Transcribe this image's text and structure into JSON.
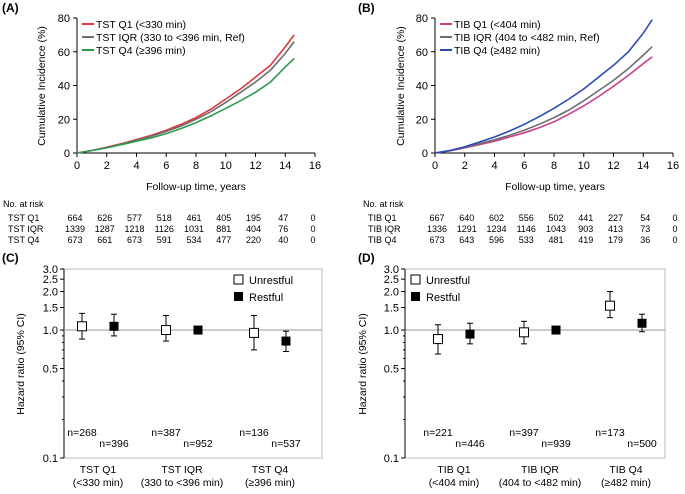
{
  "chart_data": [
    {
      "panel": "(A)",
      "type": "line",
      "xlabel": "Follow-up time, years",
      "ylabel": "Cumulative Incidence (%)",
      "xlim": [
        0,
        16
      ],
      "ylim": [
        0,
        80
      ],
      "xticks": [
        "0",
        "2",
        "4",
        "6",
        "8",
        "10",
        "12",
        "14",
        "16"
      ],
      "yticks": [
        "0",
        "20",
        "40",
        "60",
        "80"
      ],
      "series": [
        {
          "name": "TST Q1 (<330 min)",
          "color": "#e0393e",
          "x": [
            0,
            1,
            2,
            3,
            4,
            5,
            6,
            7,
            8,
            9,
            10,
            11,
            12,
            13,
            14,
            14.6
          ],
          "y": [
            0,
            1.5,
            3.5,
            5.5,
            8,
            10.5,
            13.5,
            17,
            21,
            26,
            32,
            38,
            45,
            52,
            63,
            70
          ]
        },
        {
          "name": "TST IQR (330 to <396 min, Ref)",
          "color": "#6e6e6e",
          "x": [
            0,
            1,
            2,
            3,
            4,
            5,
            6,
            7,
            8,
            9,
            10,
            11,
            12,
            13,
            14,
            14.6
          ],
          "y": [
            0,
            1.5,
            3.2,
            5.2,
            7.5,
            10,
            12.8,
            16,
            20,
            24.5,
            30,
            36,
            42,
            49,
            59,
            66
          ]
        },
        {
          "name": "TST Q4 (≥396 min)",
          "color": "#2e9b4e",
          "x": [
            0,
            1,
            2,
            3,
            4,
            5,
            6,
            7,
            8,
            9,
            10,
            11,
            12,
            13,
            14,
            14.6
          ],
          "y": [
            0,
            1.5,
            3,
            5,
            7,
            9,
            11.5,
            14.5,
            18,
            22,
            26.5,
            31,
            36,
            42,
            51,
            56
          ]
        }
      ],
      "risk_table": {
        "title": "No. at risk",
        "rows": [
          {
            "label": "TST Q1",
            "values": [
              "664",
              "626",
              "577",
              "518",
              "461",
              "405",
              "195",
              "47",
              "0"
            ]
          },
          {
            "label": "TST IQR",
            "values": [
              "1339",
              "1287",
              "1218",
              "1126",
              "1031",
              "881",
              "404",
              "76",
              "0"
            ]
          },
          {
            "label": "TST Q4",
            "values": [
              "673",
              "661",
              "673",
              "591",
              "534",
              "477",
              "220",
              "40",
              "0"
            ]
          }
        ]
      }
    },
    {
      "panel": "(B)",
      "type": "line",
      "xlabel": "Follow-up time, years",
      "ylabel": "Cumulative Incidence (%)",
      "xlim": [
        0,
        16
      ],
      "ylim": [
        0,
        80
      ],
      "xticks": [
        "0",
        "2",
        "4",
        "6",
        "8",
        "10",
        "12",
        "14",
        "16"
      ],
      "yticks": [
        "0",
        "20",
        "40",
        "60",
        "80"
      ],
      "series": [
        {
          "name": "TIB Q1 (<404 min)",
          "color": "#cc3f8f",
          "x": [
            0,
            1,
            2,
            3,
            4,
            5,
            6,
            7,
            8,
            9,
            10,
            11,
            12,
            13,
            14,
            14.6
          ],
          "y": [
            0,
            1.3,
            3,
            5,
            7,
            9.5,
            12,
            15,
            18.5,
            23,
            28,
            33.5,
            39.5,
            46,
            53,
            57
          ]
        },
        {
          "name": "TIB IQR (404 to <482 min, Ref)",
          "color": "#6e6e6e",
          "x": [
            0,
            1,
            2,
            3,
            4,
            5,
            6,
            7,
            8,
            9,
            10,
            11,
            12,
            13,
            14,
            14.6
          ],
          "y": [
            0,
            1.5,
            3.3,
            5.5,
            7.8,
            10.5,
            13.5,
            17,
            21,
            25.5,
            31,
            37,
            43,
            50,
            58,
            63
          ]
        },
        {
          "name": "TIB Q4 (≥482 min)",
          "color": "#2b4bb3",
          "x": [
            0,
            1,
            2,
            3,
            4,
            5,
            6,
            7,
            8,
            9,
            10,
            11,
            12,
            13,
            14,
            14.6
          ],
          "y": [
            0,
            1.5,
            3.7,
            6.5,
            9.5,
            13,
            17,
            21.5,
            26.5,
            32,
            38,
            45,
            52,
            60,
            71,
            79
          ]
        }
      ],
      "risk_table": {
        "title": "No. at risk",
        "rows": [
          {
            "label": "TIB Q1",
            "values": [
              "667",
              "640",
              "602",
              "556",
              "502",
              "441",
              "227",
              "54",
              "0"
            ]
          },
          {
            "label": "TIB IQR",
            "values": [
              "1336",
              "1291",
              "1234",
              "1146",
              "1043",
              "903",
              "413",
              "73",
              "0"
            ]
          },
          {
            "label": "TIB Q4",
            "values": [
              "673",
              "643",
              "596",
              "533",
              "481",
              "419",
              "179",
              "36",
              "0"
            ]
          }
        ]
      }
    },
    {
      "panel": "(C)",
      "type": "scatter",
      "ylabel": "Hazard ratio (95% CI)",
      "yscale": "log",
      "ylim": [
        0.1,
        3.0
      ],
      "yticks": [
        "0.1",
        "0.5",
        "1.0",
        "1.5",
        "2.0",
        "2.5",
        "3.0"
      ],
      "legend": [
        "Unrestful",
        "Restful"
      ],
      "groups": [
        {
          "label": [
            "TST Q1",
            "(<330 min)"
          ],
          "unrestful": {
            "hr": 1.07,
            "lo": 0.85,
            "hi": 1.35,
            "n": "n=268"
          },
          "restful": {
            "hr": 1.07,
            "lo": 0.9,
            "hi": 1.33,
            "n": "n=396"
          }
        },
        {
          "label": [
            "TST IQR",
            "(330 to <396 min)"
          ],
          "unrestful": {
            "hr": 1.0,
            "lo": 0.82,
            "hi": 1.3,
            "n": "n=387"
          },
          "restful": {
            "hr": 1.0,
            "lo": 1.0,
            "hi": 1.0,
            "n": "n=952"
          }
        },
        {
          "label": [
            "TST Q4",
            "(≥396 min)"
          ],
          "unrestful": {
            "hr": 0.95,
            "lo": 0.7,
            "hi": 1.3,
            "n": "n=136"
          },
          "restful": {
            "hr": 0.82,
            "lo": 0.68,
            "hi": 0.98,
            "n": "n=537"
          }
        }
      ]
    },
    {
      "panel": "(D)",
      "type": "scatter",
      "ylabel": "Hazard ratio (95% CI)",
      "yscale": "log",
      "ylim": [
        0.1,
        3.0
      ],
      "yticks": [
        "0.1",
        "0.5",
        "1.0",
        "1.5",
        "2.0",
        "2.5",
        "3.0"
      ],
      "legend": [
        "Unrestful",
        "Restful"
      ],
      "groups": [
        {
          "label": [
            "TIB Q1",
            "(<404 min)"
          ],
          "unrestful": {
            "hr": 0.85,
            "lo": 0.65,
            "hi": 1.1,
            "n": "n=221"
          },
          "restful": {
            "hr": 0.93,
            "lo": 0.78,
            "hi": 1.13,
            "n": "n=446"
          }
        },
        {
          "label": [
            "TIB IQR",
            "(404 to <482 min)"
          ],
          "unrestful": {
            "hr": 0.96,
            "lo": 0.78,
            "hi": 1.17,
            "n": "n=397"
          },
          "restful": {
            "hr": 1.0,
            "lo": 1.0,
            "hi": 1.0,
            "n": "n=939"
          }
        },
        {
          "label": [
            "TIB Q4",
            "(≥482 min)"
          ],
          "unrestful": {
            "hr": 1.55,
            "lo": 1.25,
            "hi": 2.0,
            "n": "n=173"
          },
          "restful": {
            "hr": 1.13,
            "lo": 0.97,
            "hi": 1.33,
            "n": "n=500"
          }
        }
      ]
    }
  ]
}
